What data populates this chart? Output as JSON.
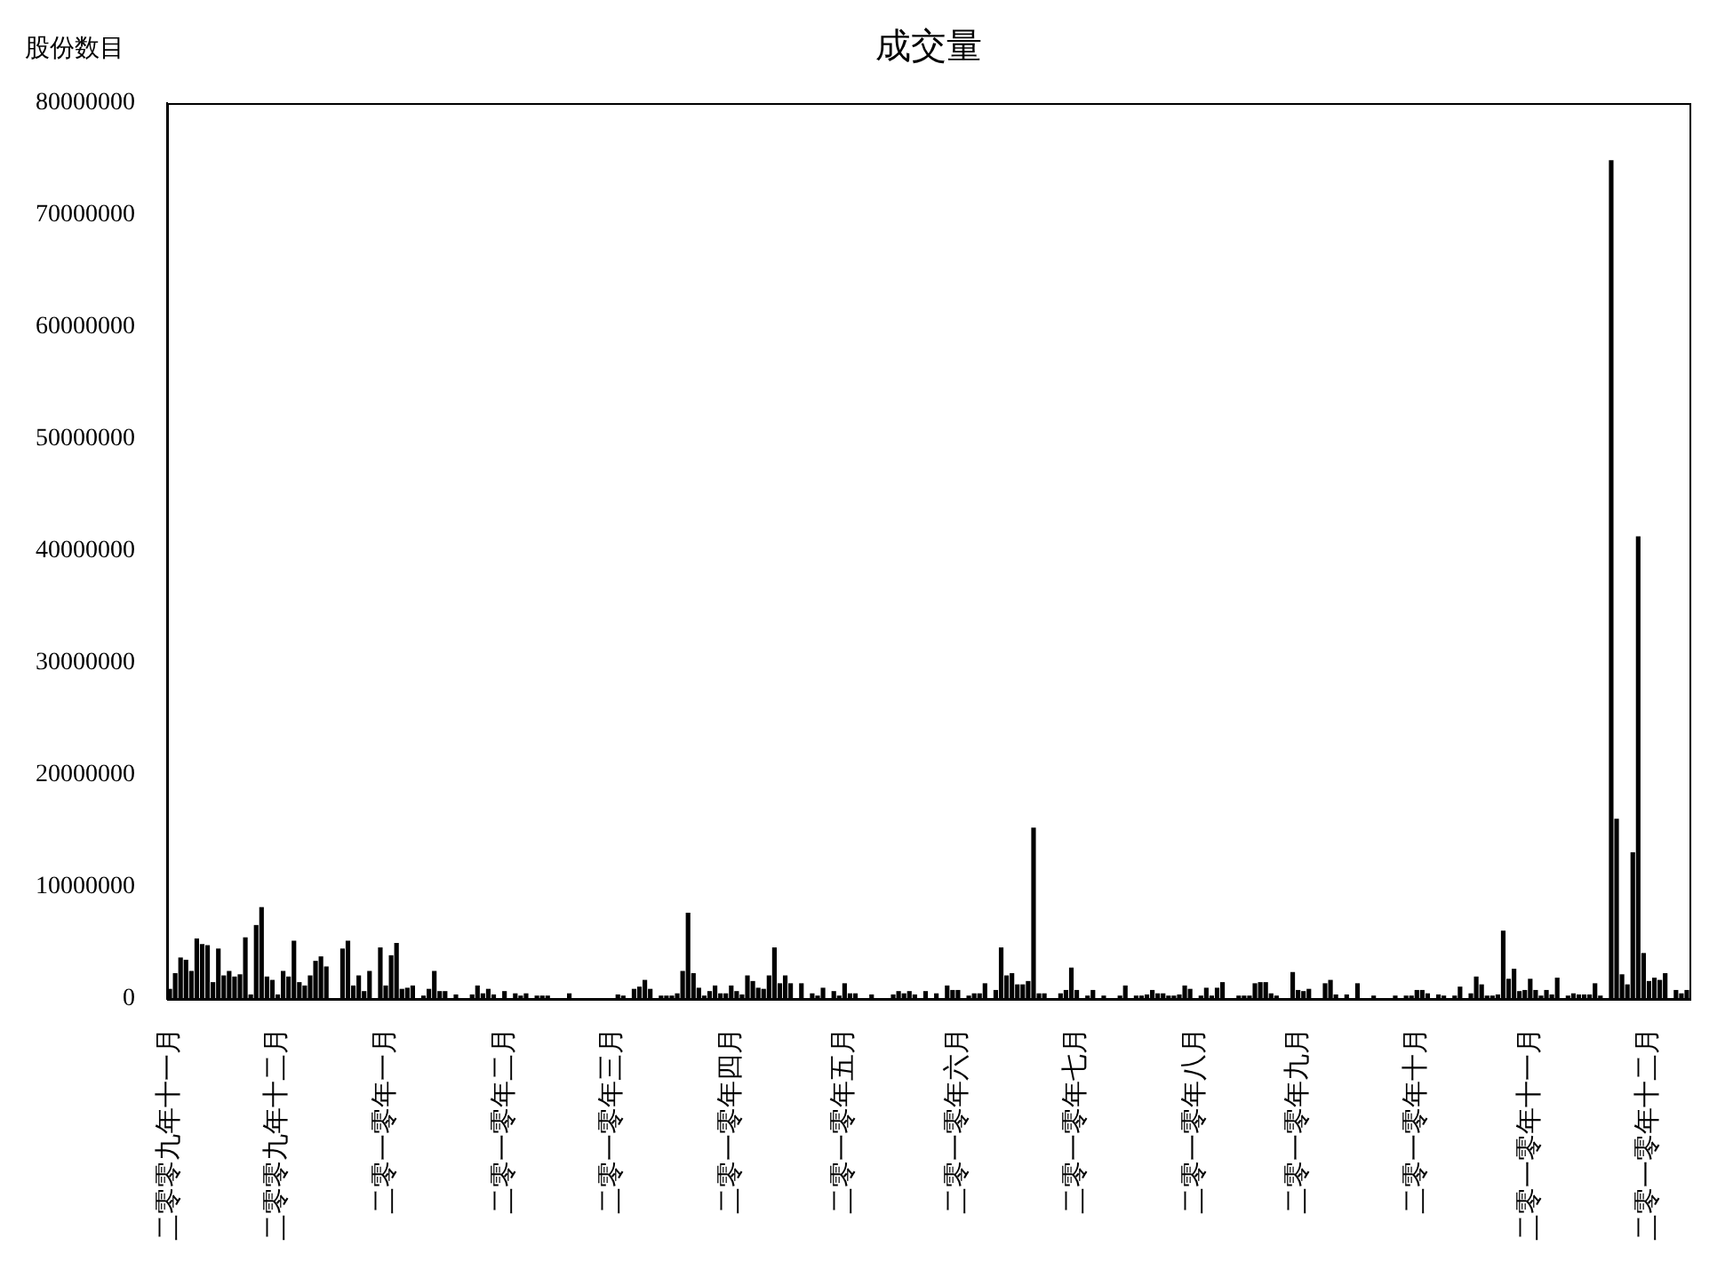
{
  "chart_data": {
    "type": "bar",
    "title": "成交量",
    "ylabel": "股份数目",
    "color": "#000000",
    "categories": [
      "二零零九年十一月",
      null,
      null,
      null,
      null,
      null,
      null,
      null,
      null,
      null,
      null,
      null,
      null,
      null,
      null,
      null,
      null,
      null,
      null,
      null,
      "二零零九年十二月",
      null,
      null,
      null,
      null,
      null,
      null,
      null,
      null,
      null,
      null,
      null,
      null,
      null,
      null,
      null,
      null,
      null,
      null,
      null,
      "二零一零年一月",
      null,
      null,
      null,
      null,
      null,
      null,
      null,
      null,
      null,
      null,
      null,
      null,
      null,
      null,
      null,
      null,
      null,
      null,
      null,
      null,
      null,
      "二零一零年二月",
      null,
      null,
      null,
      null,
      null,
      null,
      null,
      null,
      null,
      null,
      null,
      null,
      null,
      null,
      null,
      null,
      null,
      null,
      null,
      "二零一零年三月",
      null,
      null,
      null,
      null,
      null,
      null,
      null,
      null,
      null,
      null,
      null,
      null,
      null,
      null,
      null,
      null,
      null,
      null,
      null,
      null,
      null,
      "二零一零年四月",
      null,
      null,
      null,
      null,
      null,
      null,
      null,
      null,
      null,
      null,
      null,
      null,
      null,
      null,
      null,
      null,
      null,
      null,
      null,
      null,
      "二零一零年五月",
      null,
      null,
      null,
      null,
      null,
      null,
      null,
      null,
      null,
      null,
      null,
      null,
      null,
      null,
      null,
      null,
      null,
      null,
      null,
      null,
      "二零一零年六月",
      null,
      null,
      null,
      null,
      null,
      null,
      null,
      null,
      null,
      null,
      null,
      null,
      null,
      null,
      null,
      null,
      null,
      null,
      null,
      null,
      null,
      "二零一零年七月",
      null,
      null,
      null,
      null,
      null,
      null,
      null,
      null,
      null,
      null,
      null,
      null,
      null,
      null,
      null,
      null,
      null,
      null,
      null,
      null,
      null,
      "二零一零年八月",
      null,
      null,
      null,
      null,
      null,
      null,
      null,
      null,
      null,
      null,
      null,
      null,
      null,
      null,
      null,
      null,
      null,
      null,
      "二零一零年九月",
      null,
      null,
      null,
      null,
      null,
      null,
      null,
      null,
      null,
      null,
      null,
      null,
      null,
      null,
      null,
      null,
      null,
      null,
      null,
      null,
      null,
      "二零一零年十月",
      null,
      null,
      null,
      null,
      null,
      null,
      null,
      null,
      null,
      null,
      null,
      null,
      null,
      null,
      null,
      null,
      null,
      null,
      null,
      null,
      "二零一零年十一月",
      null,
      null,
      null,
      null,
      null,
      null,
      null,
      null,
      null,
      null,
      null,
      null,
      null,
      null,
      null,
      null,
      null,
      null,
      null,
      null,
      null,
      "二零一零年十二月",
      null,
      null,
      null,
      null,
      null,
      null,
      null
    ],
    "values": [
      900000,
      2300000,
      3700000,
      3500000,
      2500000,
      5400000,
      4900000,
      4800000,
      1500000,
      4500000,
      2100000,
      2500000,
      2000000,
      2200000,
      5500000,
      400000,
      6600000,
      8200000,
      2000000,
      1700000,
      400000,
      2500000,
      2000000,
      5200000,
      1500000,
      1200000,
      2100000,
      3400000,
      3800000,
      2900000,
      0,
      0,
      4500000,
      5200000,
      1200000,
      2100000,
      700000,
      2500000,
      0,
      4600000,
      1200000,
      3900000,
      5000000,
      900000,
      1000000,
      1200000,
      0,
      300000,
      900000,
      2500000,
      700000,
      700000,
      0,
      400000,
      0,
      0,
      400000,
      1200000,
      500000,
      900000,
      400000,
      0,
      700000,
      0,
      500000,
      300000,
      500000,
      0,
      300000,
      300000,
      300000,
      0,
      0,
      0,
      500000,
      0,
      0,
      0,
      0,
      0,
      0,
      0,
      0,
      400000,
      300000,
      0,
      900000,
      1100000,
      1700000,
      900000,
      0,
      300000,
      300000,
      300000,
      500000,
      2500000,
      7700000,
      2300000,
      1000000,
      300000,
      700000,
      1200000,
      500000,
      500000,
      1200000,
      700000,
      400000,
      2100000,
      1600000,
      1000000,
      900000,
      2100000,
      4600000,
      1400000,
      2100000,
      1400000,
      0,
      1400000,
      0,
      500000,
      300000,
      1000000,
      0,
      700000,
      300000,
      1400000,
      500000,
      500000,
      0,
      0,
      400000,
      0,
      0,
      0,
      400000,
      700000,
      500000,
      700000,
      400000,
      0,
      700000,
      0,
      500000,
      0,
      1200000,
      800000,
      800000,
      0,
      300000,
      500000,
      500000,
      1400000,
      0,
      800000,
      4600000,
      2100000,
      2300000,
      1300000,
      1300000,
      1600000,
      15300000,
      500000,
      500000,
      0,
      0,
      500000,
      800000,
      2800000,
      800000,
      0,
      300000,
      800000,
      0,
      300000,
      0,
      0,
      300000,
      1200000,
      0,
      300000,
      300000,
      400000,
      800000,
      500000,
      500000,
      300000,
      300000,
      400000,
      1200000,
      900000,
      0,
      300000,
      1000000,
      300000,
      1000000,
      1500000,
      0,
      0,
      300000,
      300000,
      300000,
      1400000,
      1500000,
      1500000,
      500000,
      300000,
      0,
      0,
      2400000,
      800000,
      700000,
      900000,
      0,
      0,
      1400000,
      1700000,
      400000,
      0,
      400000,
      0,
      1400000,
      0,
      0,
      300000,
      0,
      0,
      0,
      300000,
      0,
      300000,
      300000,
      800000,
      800000,
      500000,
      0,
      400000,
      300000,
      0,
      300000,
      1100000,
      0,
      500000,
      2000000,
      1300000,
      300000,
      300000,
      400000,
      6100000,
      1800000,
      2700000,
      700000,
      800000,
      1800000,
      800000,
      300000,
      800000,
      400000,
      1900000,
      0,
      300000,
      500000,
      400000,
      400000,
      400000,
      1400000,
      300000,
      0,
      74900000,
      16100000,
      2200000,
      1300000,
      13100000,
      41300000,
      4100000,
      1600000,
      1900000,
      1700000,
      2300000,
      0,
      800000,
      500000,
      800000
    ],
    "ylim": [
      0,
      80000000
    ],
    "yticks": [
      0,
      10000000,
      20000000,
      30000000,
      40000000,
      50000000,
      60000000,
      70000000,
      80000000
    ]
  }
}
